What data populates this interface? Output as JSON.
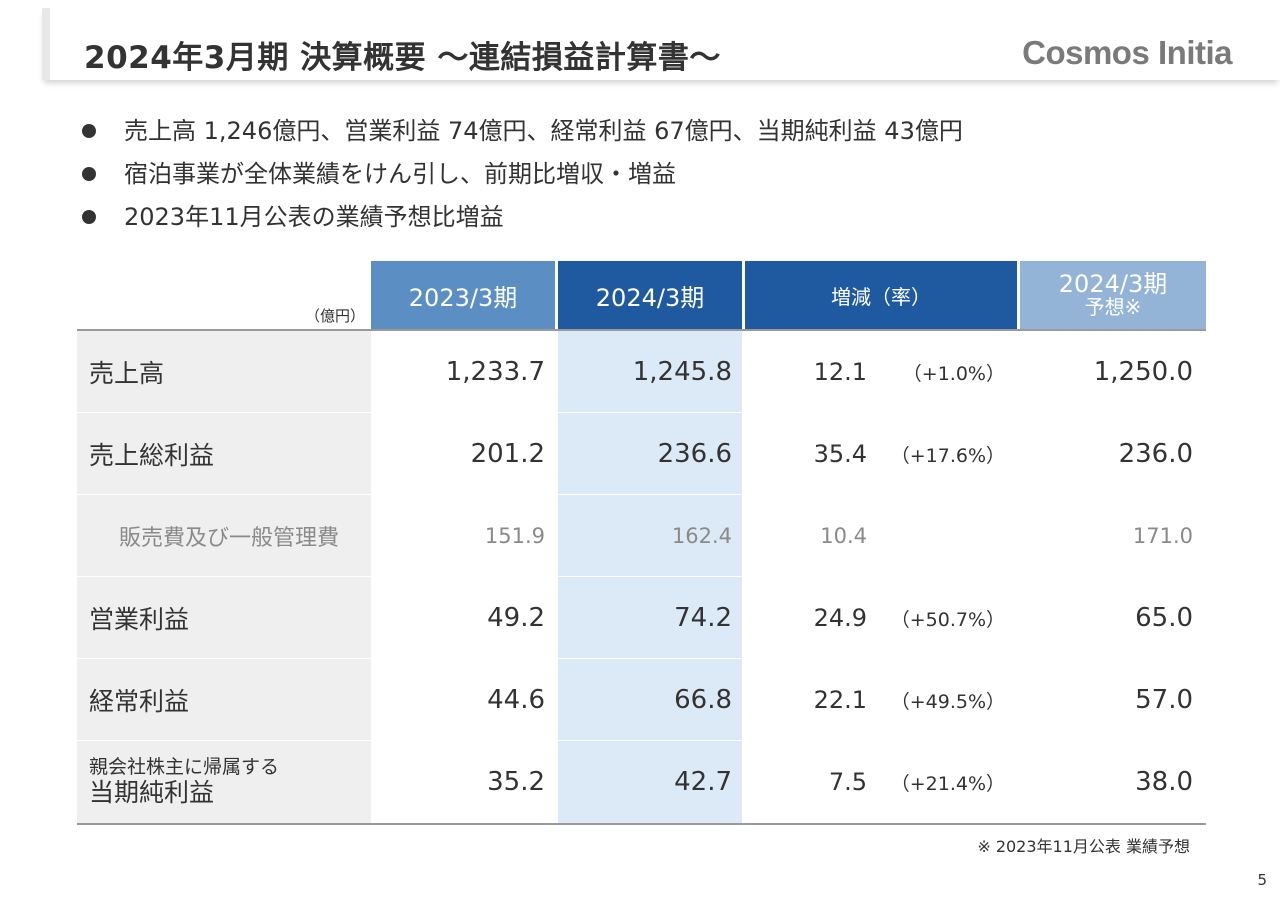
{
  "header": {
    "title": "2024年3月期 決算概要 ～連結損益計算書～",
    "logo": "Cosmos Initia"
  },
  "bullets": [
    "売上高 1,246億円、営業利益 74億円、経常利益 67億円、当期純利益 43億円",
    "宿泊事業が全体業績をけん引し、前期比増収・増益",
    "2023年11月公表の業績予想比増益"
  ],
  "table": {
    "unit": "（億円）",
    "headers": {
      "prev": "2023/3期",
      "curr": "2024/3期",
      "diff": "増減（率）",
      "forecast_line1": "2024/3期",
      "forecast_line2": "予想※"
    },
    "rows": [
      {
        "label": "売上高",
        "prev": "1,233.7",
        "curr": "1,245.8",
        "diff": "12.1",
        "rate": "（+1.0%）",
        "forecast": "1,250.0"
      },
      {
        "label": "売上総利益",
        "prev": "201.2",
        "curr": "236.6",
        "diff": "35.4",
        "rate": "（+17.6%）",
        "forecast": "236.0"
      },
      {
        "label": "販売費及び一般管理費",
        "prev": "151.9",
        "curr": "162.4",
        "diff": "10.4",
        "rate": "",
        "forecast": "171.0"
      },
      {
        "label": "営業利益",
        "prev": "49.2",
        "curr": "74.2",
        "diff": "24.9",
        "rate": "（+50.7%）",
        "forecast": "65.0"
      },
      {
        "label": "経常利益",
        "prev": "44.6",
        "curr": "66.8",
        "diff": "22.1",
        "rate": "（+49.5%）",
        "forecast": "57.0"
      },
      {
        "label_line1": "親会社株主に帰属する",
        "label_line2": "当期純利益",
        "prev": "35.2",
        "curr": "42.7",
        "diff": "7.5",
        "rate": "（+21.4%）",
        "forecast": "38.0"
      }
    ]
  },
  "footnote": "※ 2023年11月公表 業績予想",
  "page_number": "5"
}
